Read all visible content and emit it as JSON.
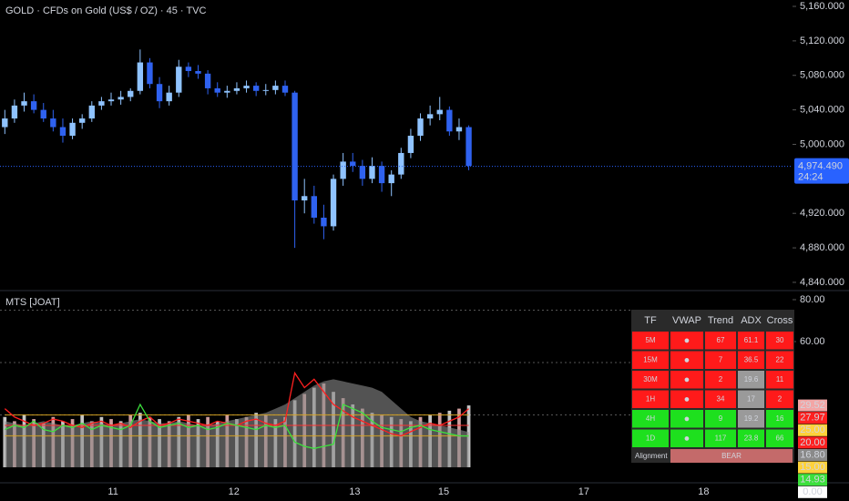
{
  "header": {
    "title": "GOLD · CFDs on Gold (US$ / OZ) · 45 · TVC",
    "pane_title": "MTS [JOAT]"
  },
  "chart_data": [
    {
      "type": "candlestick",
      "up_color": "#8fc3ff",
      "down_color": "#2f62f0",
      "x": [
        0,
        1,
        2,
        3,
        4,
        5,
        6,
        7,
        8,
        9,
        10,
        11,
        12,
        13,
        14,
        15,
        16,
        17,
        18,
        19,
        20,
        21,
        22,
        23,
        24,
        25,
        26,
        27,
        28,
        29,
        30,
        31,
        32,
        33,
        34,
        35,
        36,
        37,
        38,
        39,
        40,
        41,
        42,
        43,
        44,
        45,
        46,
        47,
        48
      ],
      "open": [
        5020,
        5030,
        5045,
        5050,
        5040,
        5030,
        5020,
        5010,
        5025,
        5030,
        5045,
        5050,
        5052,
        5055,
        5062,
        5095,
        5070,
        5050,
        5060,
        5090,
        5085,
        5082,
        5065,
        5060,
        5062,
        5065,
        5068,
        5062,
        5063,
        5068,
        5060,
        4935,
        4940,
        4915,
        4905,
        4960,
        4980,
        4975,
        4960,
        4975,
        4955,
        4965,
        4990,
        5010,
        5030,
        5035,
        5040,
        5015,
        5020
      ],
      "high": [
        5040,
        5052,
        5060,
        5058,
        5048,
        5040,
        5030,
        5030,
        5035,
        5050,
        5055,
        5060,
        5062,
        5065,
        5110,
        5100,
        5078,
        5068,
        5098,
        5095,
        5092,
        5086,
        5072,
        5068,
        5072,
        5074,
        5072,
        5070,
        5074,
        5074,
        5062,
        4960,
        4952,
        4930,
        4965,
        4990,
        4990,
        4982,
        4985,
        4980,
        4970,
        4996,
        5018,
        5036,
        5045,
        5055,
        5044,
        5030,
        5022
      ],
      "low": [
        5012,
        5025,
        5038,
        5036,
        5026,
        5015,
        5002,
        5006,
        5018,
        5026,
        5040,
        5045,
        5046,
        5050,
        5058,
        5065,
        5042,
        5045,
        5055,
        5078,
        5076,
        5058,
        5055,
        5054,
        5058,
        5060,
        5056,
        5057,
        5058,
        5056,
        4880,
        4920,
        4908,
        4890,
        4900,
        4952,
        4968,
        4952,
        4955,
        4945,
        4940,
        4960,
        4984,
        5004,
        5022,
        5028,
        5010,
        5005,
        4970
      ],
      "close": [
        5030,
        5045,
        5050,
        5040,
        5030,
        5020,
        5010,
        5025,
        5030,
        5045,
        5050,
        5052,
        5055,
        5062,
        5095,
        5070,
        5050,
        5060,
        5090,
        5085,
        5082,
        5065,
        5060,
        5062,
        5065,
        5068,
        5062,
        5063,
        5068,
        5060,
        4935,
        4940,
        4915,
        4905,
        4960,
        4980,
        4975,
        4960,
        4975,
        4955,
        4965,
        4990,
        5010,
        5030,
        5035,
        5040,
        5015,
        5020,
        4975
      ],
      "xlim": [
        -0.5,
        81.5
      ],
      "xticks": [
        {
          "value": 11.2,
          "label": "11"
        },
        {
          "value": 23.7,
          "label": "12"
        },
        {
          "value": 36.2,
          "label": "13"
        },
        {
          "value": 45.4,
          "label": "15"
        },
        {
          "value": 59.9,
          "label": "17"
        },
        {
          "value": 72.3,
          "label": "18"
        }
      ],
      "ylim": [
        4831.5,
        5167.4
      ],
      "yticks": [
        {
          "value": 5160,
          "label": "5,160.000"
        },
        {
          "value": 5120,
          "label": "5,120.000"
        },
        {
          "value": 5080,
          "label": "5,080.000"
        },
        {
          "value": 5040,
          "label": "5,040.000"
        },
        {
          "value": 5000,
          "label": "5,000.000"
        },
        {
          "value": 4920,
          "label": "4,920.000"
        },
        {
          "value": 4880,
          "label": "4,880.000"
        },
        {
          "value": 4840,
          "label": "4,840.000"
        }
      ],
      "last_price": {
        "value": 4974.49,
        "label": "4,974.490"
      },
      "countdown": "24:24",
      "last_color": "#2962ff"
    },
    {
      "type": "line",
      "xlim": [
        -0.5,
        81.5
      ],
      "ylim": [
        -7.4,
        83.9
      ],
      "yticks": [
        {
          "value": 80,
          "label": "80.00"
        },
        {
          "value": 60,
          "label": "60.00"
        }
      ],
      "levels": [
        75,
        50,
        25
      ],
      "bands": [
        {
          "value": 25,
          "color": "#d9a520"
        },
        {
          "value": 20,
          "color": "#ff3030"
        },
        {
          "value": 15,
          "color": "#d9a520"
        }
      ],
      "x": [
        0,
        1,
        2,
        3,
        4,
        5,
        6,
        7,
        8,
        9,
        10,
        11,
        12,
        13,
        14,
        15,
        16,
        17,
        18,
        19,
        20,
        21,
        22,
        23,
        24,
        25,
        26,
        27,
        28,
        29,
        30,
        31,
        32,
        33,
        34,
        35,
        36,
        37,
        38,
        39,
        40,
        41,
        42,
        43,
        44,
        45,
        46,
        47,
        48
      ],
      "histogram": {
        "color": "#f3b9b9",
        "values": [
          24,
          22,
          25,
          23,
          21,
          24,
          22,
          23,
          25,
          22,
          24,
          23,
          22,
          25,
          26,
          24,
          23,
          22,
          24,
          25,
          23,
          24,
          22,
          25,
          23,
          24,
          26,
          25,
          23,
          24,
          32,
          35,
          38,
          40,
          36,
          33,
          30,
          28,
          26,
          25,
          24,
          23,
          22,
          24,
          25,
          26,
          27,
          28,
          29.52
        ]
      },
      "area": {
        "color": "#8a8a8a",
        "values": [
          22,
          21,
          20,
          21,
          22,
          21,
          20,
          20,
          21,
          22,
          21,
          20,
          21,
          22,
          23,
          22,
          21,
          21,
          22,
          21,
          20,
          20,
          21,
          22,
          23,
          24,
          25,
          26,
          28,
          30,
          33,
          36,
          39,
          41,
          42,
          41,
          40,
          39,
          38,
          36,
          32,
          28,
          24,
          22,
          21,
          20,
          19,
          18,
          16.8
        ]
      },
      "series": [
        {
          "color": "#ff2020",
          "values": [
            28,
            24,
            22,
            20,
            21,
            23,
            22,
            20,
            19,
            21,
            22,
            20,
            21,
            19,
            22,
            24,
            20,
            21,
            23,
            22,
            21,
            20,
            22,
            21,
            20,
            22,
            23,
            21,
            20,
            22,
            45,
            38,
            42,
            36,
            30,
            27,
            24,
            22,
            20,
            18,
            16,
            15,
            17,
            19,
            21,
            20,
            22,
            24,
            27.97
          ]
        },
        {
          "color": "#3ce03c",
          "values": [
            18,
            20,
            19,
            22,
            18,
            17,
            20,
            19,
            21,
            18,
            20,
            19,
            18,
            20,
            30,
            22,
            19,
            20,
            21,
            19,
            20,
            18,
            19,
            21,
            20,
            19,
            18,
            20,
            19,
            20,
            12,
            10,
            9,
            10,
            11,
            30,
            28,
            26,
            22,
            19,
            18,
            17,
            19,
            20,
            18,
            17,
            16,
            15,
            14.93
          ]
        }
      ],
      "side_labels": [
        {
          "value": 29.52,
          "color": "#f3a5a5"
        },
        {
          "value": 27.97,
          "color": "#ff2020"
        },
        {
          "value": 25,
          "label": "25.00",
          "color": "#ffd23a"
        },
        {
          "value": 20,
          "label": "20.00",
          "color": "#ff2020"
        },
        {
          "value": 16.8,
          "label": "16.80",
          "color": "#8a8a8a"
        },
        {
          "value": 15,
          "label": "15.00",
          "color": "#ffd23a"
        },
        {
          "value": 14.93,
          "color": "#3ce03c"
        },
        {
          "value": 0,
          "label": "0.00",
          "color": "#ffffff"
        }
      ]
    }
  ],
  "table": {
    "header": [
      "TF",
      "VWAP",
      "Trend",
      "ADX",
      "Cross"
    ],
    "rows": [
      [
        "5M",
        "●",
        "67",
        "61.1",
        "30"
      ],
      [
        "15M",
        "●",
        "7",
        "36.5",
        "22"
      ],
      [
        "30M",
        "●",
        "2",
        "19.6",
        "11"
      ],
      [
        "1H",
        "●",
        "34",
        "17",
        "2"
      ],
      [
        "4H",
        "●",
        "9",
        "19.2",
        "16"
      ],
      [
        "1D",
        "●",
        "117",
        "23.8",
        "66"
      ]
    ],
    "row_colors": [
      "#ff1a1a",
      "#ff1a1a",
      "#ff1a1a",
      "#ff1a1a",
      "#1ee01e",
      "#1ee01e"
    ],
    "adx_colors": [
      "#ff1a1a",
      "#ff1a1a",
      "#9a9a9a",
      "#9a9a9a",
      "#9a9a9a",
      "#1ee01e"
    ],
    "alignment": {
      "label": "Alignment",
      "value": "BEAR",
      "color": "#c46a6a"
    }
  }
}
